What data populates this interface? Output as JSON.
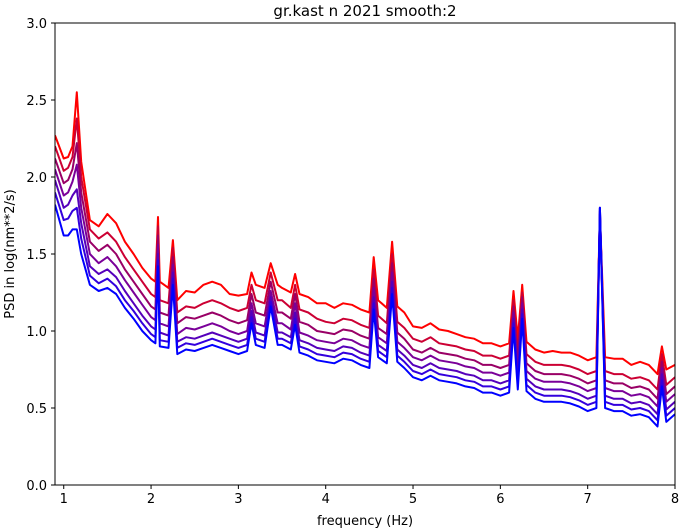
{
  "chart_data": {
    "type": "line",
    "title": "gr.kast n 2021 smooth:2",
    "xlabel": "frequency (Hz)",
    "ylabel": "PSD in log(nm**2/s)",
    "xlim": [
      0.9,
      8.0
    ],
    "ylim": [
      0.0,
      3.0
    ],
    "x_ticks": [
      1,
      2,
      3,
      4,
      5,
      6,
      7,
      8
    ],
    "y_ticks": [
      0.0,
      0.5,
      1.0,
      1.5,
      2.0,
      2.5,
      3.0
    ],
    "x_tick_labels": [
      "1",
      "2",
      "3",
      "4",
      "5",
      "6",
      "7",
      "8"
    ],
    "y_tick_labels": [
      "0.0",
      "0.5",
      "1.0",
      "1.5",
      "2.0",
      "2.5",
      "3.0"
    ],
    "grid": false,
    "legend": "none",
    "series_colors": [
      "#ff0000",
      "#cc0033",
      "#990066",
      "#7a0099",
      "#5500bb",
      "#3300dd",
      "#0000ff"
    ],
    "base_x": [
      0.9,
      1.0,
      1.05,
      1.1,
      1.15,
      1.2,
      1.3,
      1.4,
      1.5,
      1.6,
      1.7,
      1.8,
      1.9,
      2.0,
      2.05,
      2.08,
      2.1,
      2.2,
      2.25,
      2.3,
      2.4,
      2.5,
      2.6,
      2.7,
      2.8,
      2.9,
      3.0,
      3.1,
      3.15,
      3.2,
      3.3,
      3.37,
      3.45,
      3.5,
      3.6,
      3.65,
      3.7,
      3.8,
      3.9,
      4.0,
      4.1,
      4.2,
      4.3,
      4.4,
      4.5,
      4.55,
      4.6,
      4.7,
      4.76,
      4.82,
      4.9,
      5.0,
      5.1,
      5.2,
      5.3,
      5.4,
      5.5,
      5.6,
      5.7,
      5.8,
      5.9,
      6.0,
      6.1,
      6.15,
      6.2,
      6.25,
      6.3,
      6.4,
      6.5,
      6.6,
      6.7,
      6.8,
      6.9,
      7.0,
      7.1,
      7.14,
      7.2,
      7.3,
      7.4,
      7.5,
      7.6,
      7.7,
      7.8,
      7.85,
      7.9,
      8.0
    ],
    "series": [
      {
        "values": [
          2.27,
          2.12,
          2.13,
          2.2,
          2.55,
          2.1,
          1.72,
          1.68,
          1.76,
          1.7,
          1.58,
          1.5,
          1.41,
          1.34,
          1.32,
          1.74,
          1.32,
          1.28,
          1.59,
          1.2,
          1.26,
          1.25,
          1.3,
          1.32,
          1.3,
          1.24,
          1.23,
          1.24,
          1.38,
          1.3,
          1.28,
          1.44,
          1.3,
          1.28,
          1.25,
          1.37,
          1.24,
          1.22,
          1.18,
          1.18,
          1.15,
          1.18,
          1.17,
          1.14,
          1.12,
          1.48,
          1.2,
          1.15,
          1.58,
          1.16,
          1.12,
          1.03,
          1.02,
          1.05,
          1.01,
          1.0,
          0.98,
          0.96,
          0.95,
          0.92,
          0.92,
          0.9,
          0.92,
          1.26,
          0.95,
          1.3,
          0.93,
          0.88,
          0.86,
          0.87,
          0.86,
          0.86,
          0.84,
          0.81,
          0.83,
          1.76,
          0.83,
          0.82,
          0.82,
          0.78,
          0.8,
          0.78,
          0.72,
          0.9,
          0.75,
          0.78
        ]
      },
      {
        "values": [
          2.2,
          2.04,
          2.06,
          2.13,
          2.38,
          2.0,
          1.66,
          1.6,
          1.64,
          1.58,
          1.48,
          1.4,
          1.32,
          1.24,
          1.22,
          1.68,
          1.2,
          1.18,
          1.54,
          1.12,
          1.16,
          1.15,
          1.18,
          1.2,
          1.18,
          1.15,
          1.13,
          1.15,
          1.3,
          1.2,
          1.18,
          1.38,
          1.2,
          1.2,
          1.15,
          1.3,
          1.14,
          1.12,
          1.08,
          1.06,
          1.05,
          1.08,
          1.07,
          1.04,
          1.02,
          1.4,
          1.1,
          1.05,
          1.5,
          1.06,
          1.02,
          0.95,
          0.93,
          0.96,
          0.92,
          0.91,
          0.9,
          0.88,
          0.87,
          0.84,
          0.84,
          0.82,
          0.84,
          1.2,
          0.86,
          1.25,
          0.85,
          0.8,
          0.78,
          0.78,
          0.78,
          0.77,
          0.75,
          0.72,
          0.74,
          1.74,
          0.74,
          0.72,
          0.72,
          0.69,
          0.7,
          0.68,
          0.62,
          0.85,
          0.65,
          0.7
        ]
      },
      {
        "values": [
          2.12,
          1.96,
          1.98,
          2.05,
          2.22,
          1.9,
          1.58,
          1.52,
          1.56,
          1.5,
          1.4,
          1.32,
          1.24,
          1.16,
          1.14,
          1.62,
          1.12,
          1.1,
          1.48,
          1.05,
          1.09,
          1.08,
          1.1,
          1.12,
          1.1,
          1.07,
          1.05,
          1.07,
          1.24,
          1.12,
          1.1,
          1.32,
          1.12,
          1.12,
          1.08,
          1.24,
          1.06,
          1.04,
          1.0,
          0.99,
          0.98,
          1.01,
          1.0,
          0.97,
          0.95,
          1.34,
          1.02,
          0.98,
          1.44,
          0.99,
          0.95,
          0.88,
          0.86,
          0.89,
          0.86,
          0.85,
          0.84,
          0.82,
          0.81,
          0.78,
          0.78,
          0.76,
          0.78,
          1.16,
          0.8,
          1.22,
          0.79,
          0.74,
          0.72,
          0.72,
          0.72,
          0.71,
          0.69,
          0.66,
          0.68,
          1.76,
          0.68,
          0.66,
          0.66,
          0.63,
          0.64,
          0.62,
          0.56,
          0.8,
          0.59,
          0.64
        ]
      },
      {
        "values": [
          2.05,
          1.88,
          1.9,
          1.97,
          2.08,
          1.8,
          1.5,
          1.44,
          1.48,
          1.42,
          1.33,
          1.25,
          1.17,
          1.09,
          1.07,
          1.56,
          1.05,
          1.03,
          1.43,
          0.98,
          1.02,
          1.01,
          1.03,
          1.05,
          1.03,
          1.0,
          0.98,
          1.0,
          1.18,
          1.05,
          1.03,
          1.26,
          1.05,
          1.05,
          1.01,
          1.18,
          0.99,
          0.97,
          0.94,
          0.93,
          0.92,
          0.95,
          0.94,
          0.91,
          0.89,
          1.28,
          0.96,
          0.92,
          1.38,
          0.93,
          0.89,
          0.83,
          0.81,
          0.84,
          0.81,
          0.8,
          0.79,
          0.77,
          0.76,
          0.73,
          0.73,
          0.71,
          0.73,
          1.12,
          0.75,
          1.18,
          0.74,
          0.69,
          0.67,
          0.67,
          0.67,
          0.66,
          0.64,
          0.61,
          0.63,
          1.78,
          0.63,
          0.61,
          0.61,
          0.58,
          0.59,
          0.57,
          0.51,
          0.76,
          0.54,
          0.59
        ]
      },
      {
        "values": [
          1.98,
          1.8,
          1.82,
          1.88,
          1.92,
          1.7,
          1.42,
          1.37,
          1.4,
          1.35,
          1.26,
          1.18,
          1.1,
          1.03,
          1.01,
          1.5,
          0.99,
          0.97,
          1.38,
          0.93,
          0.96,
          0.95,
          0.97,
          0.99,
          0.97,
          0.95,
          0.93,
          0.95,
          1.13,
          0.99,
          0.97,
          1.22,
          0.99,
          0.99,
          0.96,
          1.12,
          0.94,
          0.92,
          0.89,
          0.88,
          0.87,
          0.9,
          0.89,
          0.86,
          0.84,
          1.22,
          0.91,
          0.87,
          1.32,
          0.88,
          0.84,
          0.78,
          0.76,
          0.79,
          0.76,
          0.75,
          0.74,
          0.72,
          0.71,
          0.68,
          0.68,
          0.66,
          0.68,
          1.08,
          0.7,
          1.14,
          0.69,
          0.64,
          0.62,
          0.62,
          0.62,
          0.61,
          0.59,
          0.56,
          0.58,
          1.8,
          0.58,
          0.56,
          0.56,
          0.53,
          0.54,
          0.52,
          0.46,
          0.72,
          0.49,
          0.54
        ]
      },
      {
        "values": [
          1.9,
          1.72,
          1.73,
          1.78,
          1.8,
          1.6,
          1.36,
          1.31,
          1.34,
          1.29,
          1.2,
          1.13,
          1.05,
          0.98,
          0.96,
          1.46,
          0.94,
          0.93,
          1.34,
          0.89,
          0.92,
          0.91,
          0.93,
          0.95,
          0.93,
          0.91,
          0.89,
          0.91,
          1.09,
          0.95,
          0.93,
          1.19,
          0.95,
          0.95,
          0.92,
          1.08,
          0.9,
          0.88,
          0.85,
          0.84,
          0.83,
          0.86,
          0.85,
          0.82,
          0.8,
          1.18,
          0.87,
          0.83,
          1.28,
          0.84,
          0.8,
          0.74,
          0.72,
          0.75,
          0.72,
          0.71,
          0.7,
          0.68,
          0.67,
          0.64,
          0.64,
          0.62,
          0.64,
          1.05,
          0.66,
          1.11,
          0.65,
          0.6,
          0.58,
          0.58,
          0.58,
          0.57,
          0.55,
          0.52,
          0.54,
          1.8,
          0.54,
          0.52,
          0.52,
          0.49,
          0.5,
          0.48,
          0.42,
          0.68,
          0.45,
          0.5
        ]
      },
      {
        "values": [
          1.82,
          1.62,
          1.62,
          1.66,
          1.66,
          1.5,
          1.3,
          1.26,
          1.28,
          1.24,
          1.15,
          1.08,
          1.0,
          0.94,
          0.92,
          1.42,
          0.9,
          0.89,
          1.3,
          0.85,
          0.88,
          0.87,
          0.89,
          0.91,
          0.89,
          0.87,
          0.85,
          0.87,
          1.05,
          0.91,
          0.89,
          1.16,
          0.91,
          0.91,
          0.88,
          1.04,
          0.86,
          0.84,
          0.81,
          0.8,
          0.79,
          0.82,
          0.81,
          0.78,
          0.76,
          1.14,
          0.83,
          0.79,
          1.24,
          0.8,
          0.76,
          0.7,
          0.68,
          0.71,
          0.68,
          0.67,
          0.66,
          0.64,
          0.63,
          0.6,
          0.6,
          0.58,
          0.6,
          1.02,
          0.62,
          1.08,
          0.61,
          0.56,
          0.54,
          0.54,
          0.54,
          0.53,
          0.51,
          0.48,
          0.5,
          1.8,
          0.5,
          0.48,
          0.48,
          0.45,
          0.46,
          0.44,
          0.38,
          0.64,
          0.41,
          0.46
        ]
      }
    ]
  }
}
